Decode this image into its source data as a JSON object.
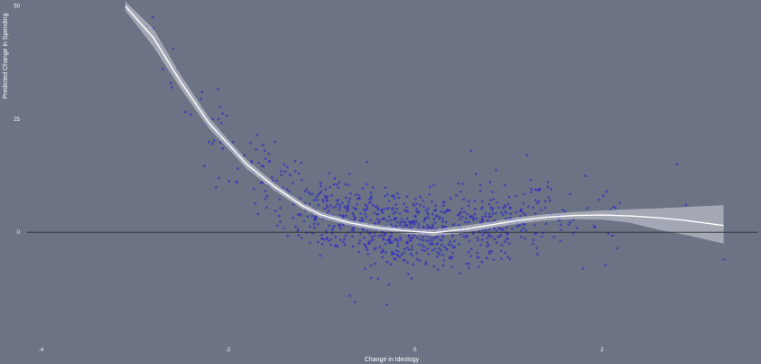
{
  "chart_data": {
    "type": "scatter",
    "title": "",
    "xlabel": "Change in Ideology",
    "ylabel": "Predicted Change in Spending",
    "xlim": [
      -4.15,
      3.7
    ],
    "ylim": [
      -23.5,
      50.5
    ],
    "x_ticks": [
      -4,
      -2,
      0,
      2
    ],
    "y_ticks": [
      0,
      25,
      50
    ],
    "x_tick_labels": [
      "-4",
      "-2",
      "0",
      "2"
    ],
    "y_tick_labels": [
      "0",
      "25",
      "50"
    ],
    "grid": false,
    "legend": "none",
    "hline_y": 0,
    "colors": {
      "background": "#6b7384",
      "points": "#2f24c8",
      "smooth_line": "#ffffff",
      "ribbon": "#c8ccd4",
      "zero_line": "#2a2a2a"
    },
    "series": [
      {
        "kind": "points",
        "n": 900,
        "x_range": [
          -3.1,
          3.3
        ],
        "y_range": [
          -16,
          50
        ],
        "x_mode": -0.1,
        "sample_points": [
          {
            "x": -3.1,
            "y": 50
          },
          {
            "x": -2.8,
            "y": 45
          },
          {
            "x": -2.7,
            "y": 36
          },
          {
            "x": -2.55,
            "y": 36
          },
          {
            "x": -2.6,
            "y": 32
          },
          {
            "x": -2.4,
            "y": 26
          },
          {
            "x": -2.1,
            "y": 25
          },
          {
            "x": -1.5,
            "y": 20
          },
          {
            "x": -2.1,
            "y": 12
          },
          {
            "x": 0.6,
            "y": 18
          },
          {
            "x": 1.2,
            "y": 17
          },
          {
            "x": 2.8,
            "y": 15
          },
          {
            "x": -0.7,
            "y": -14
          },
          {
            "x": -0.3,
            "y": -16
          },
          {
            "x": 1.8,
            "y": -8
          },
          {
            "x": 3.3,
            "y": -6
          }
        ]
      },
      {
        "kind": "smooth",
        "x": [
          -3.1,
          -2.8,
          -2.5,
          -2.2,
          -2.0,
          -1.8,
          -1.5,
          -1.2,
          -1.0,
          -0.7,
          -0.4,
          -0.1,
          0.2,
          0.5,
          0.8,
          1.1,
          1.4,
          1.7,
          2.0,
          2.3,
          2.6,
          2.9,
          3.3
        ],
        "y": [
          50,
          43,
          33,
          24,
          19.5,
          15,
          10,
          5.8,
          3.8,
          2.1,
          1.0,
          0.3,
          -0.1,
          0.6,
          1.6,
          2.6,
          3.3,
          3.7,
          3.8,
          3.6,
          3.2,
          2.6,
          1.5
        ],
        "lower": [
          49,
          41,
          31.5,
          22.8,
          18.5,
          14,
          9.2,
          5.1,
          3.1,
          1.5,
          0.4,
          -0.3,
          -0.8,
          -0.2,
          0.9,
          1.9,
          2.6,
          2.9,
          2.8,
          2.1,
          0.6,
          -0.6,
          -2.5
        ],
        "upper": [
          51,
          45,
          34.5,
          25.2,
          20.5,
          16,
          10.8,
          6.5,
          4.5,
          2.7,
          1.6,
          0.9,
          0.6,
          1.4,
          2.3,
          3.3,
          4.0,
          4.5,
          4.8,
          5.1,
          5.3,
          5.6,
          6.0
        ]
      }
    ]
  }
}
